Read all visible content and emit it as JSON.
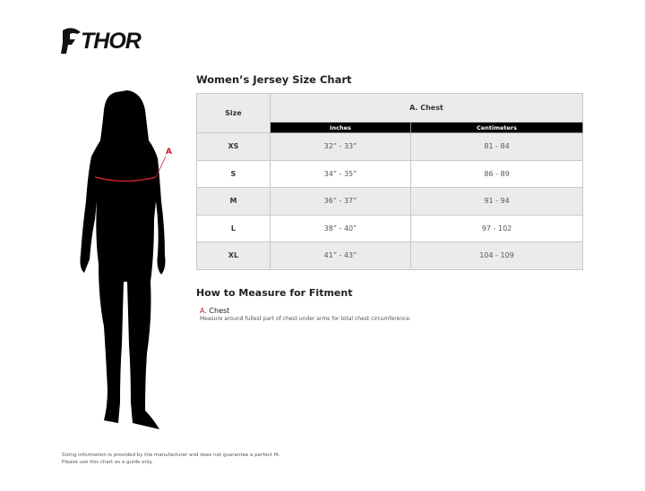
{
  "logo": {
    "text": "THOR"
  },
  "title": "Women’s Jersey Size Chart",
  "table": {
    "size_header": "Size",
    "group_header": "A. Chest",
    "sub_headers": [
      "Inches",
      "Centimeters"
    ],
    "rows": [
      {
        "size": "XS",
        "inches": "32” - 33”",
        "cm": "81 - 84"
      },
      {
        "size": "S",
        "inches": "34” - 35”",
        "cm": "86 - 89"
      },
      {
        "size": "M",
        "inches": "36” - 37”",
        "cm": "91 - 94"
      },
      {
        "size": "L",
        "inches": "38” - 40”",
        "cm": "97 - 102"
      },
      {
        "size": "XL",
        "inches": "41” - 43”",
        "cm": "104 - 109"
      }
    ]
  },
  "figure": {
    "marker": "A",
    "marker_color": "#c0202a"
  },
  "howto": {
    "title": "How to Measure for Fitment",
    "letter": "A.",
    "label": "Chest",
    "description": "Measure around fullest part of chest under arms for total chest circumference."
  },
  "footer": {
    "line1": "Sizing information is provided by the manufacturer and does not guarantee a perfect fit.",
    "line2": "Please use this chart as a guide only."
  }
}
